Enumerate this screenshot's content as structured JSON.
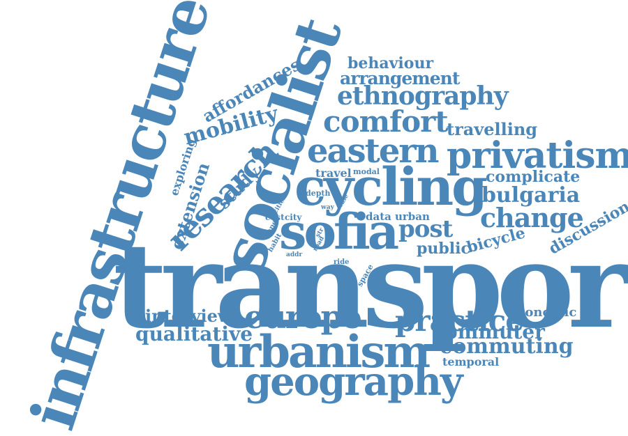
{
  "color": "#4a86b8",
  "background": "#ffffff",
  "words": {
    "transport": "transport",
    "infrastructure": "infrastructure",
    "socialist": "socialist",
    "cycling": "cycling",
    "sofia": "sofia",
    "urbanism": "urbanism",
    "geography": "geography",
    "europe": "europe",
    "privatism": "privatism",
    "eastern": "eastern",
    "comfort": "comfort",
    "ethnography": "ethnography",
    "research": "research",
    "practice": "practice",
    "change": "change",
    "arrangement": "arrangement",
    "mobility": "mobility",
    "commuting": "commuting",
    "qualitative": "qualitative",
    "interview": "interview",
    "bulgaria": "bulgaria",
    "post": "post",
    "commuter": "commuter",
    "travelling": "travelling",
    "affordances": "affordances",
    "study": "study",
    "extension": "extension",
    "complicate": "complicate",
    "behaviour": "behaviour",
    "public": "public",
    "bicycle": "bicycle",
    "discussion": "discussion",
    "economic": "economic",
    "temporal": "temporal",
    "exploring": "exploring",
    "travel": "travel",
    "urban": "urban",
    "data": "data",
    "cost": "cost",
    "city": "city",
    "depth": "depth",
    "modal": "modal",
    "paper": "paper",
    "cities": "cities",
    "habit": "habit",
    "way": "way",
    "case": "case",
    "ride": "ride",
    "space": "space",
    "addr": "addr",
    "str": "str",
    "road": "road"
  }
}
